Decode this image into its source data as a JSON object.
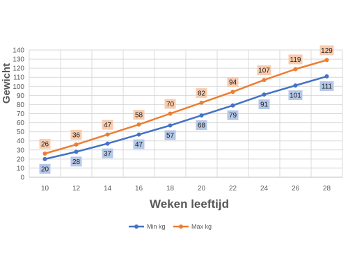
{
  "chart_data": {
    "type": "line",
    "title": "",
    "xlabel": "Weken leeftijd",
    "ylabel": "Gewicht",
    "x": [
      10,
      12,
      14,
      16,
      18,
      20,
      22,
      24,
      26,
      28
    ],
    "ylim": [
      0,
      140
    ],
    "ytick_step": 10,
    "grid": true,
    "legend_position": "bottom",
    "series": [
      {
        "name": "Min kg",
        "color": "#4472C4",
        "label_bg": "#B4C7E7",
        "label_position": "below",
        "values": [
          20,
          28,
          37,
          47,
          57,
          68,
          79,
          91,
          101,
          111
        ]
      },
      {
        "name": "Max kg",
        "color": "#ED7D31",
        "label_bg": "#F8CBAD",
        "label_position": "above",
        "values": [
          26,
          36,
          47,
          58,
          70,
          82,
          94,
          107,
          119,
          129
        ]
      }
    ]
  }
}
